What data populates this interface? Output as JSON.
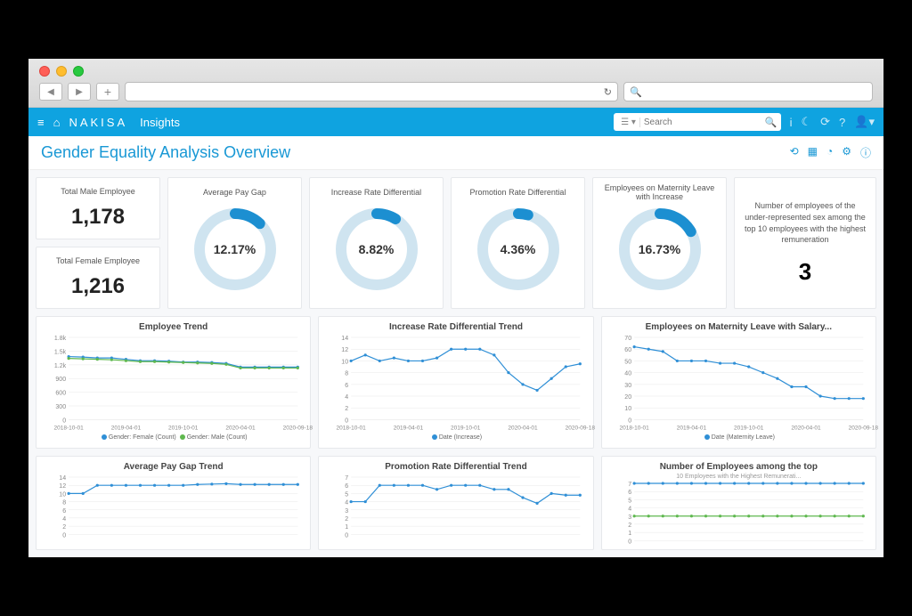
{
  "colors": {
    "header_bg": "#0fa3e0",
    "accent": "#1998d5",
    "series_blue": "#2f8fd6",
    "series_green": "#5fb84f",
    "donut_track": "#cfe4f0",
    "donut_fill": "#1c8fd1",
    "grid": "#e8e8e8",
    "axis_text": "#888888",
    "card_border": "#e6e8eb",
    "bg": "#f7f8fa"
  },
  "mac": {
    "search_icon": "🔍",
    "refresh_icon": "↻"
  },
  "header": {
    "brand": "NAKISA",
    "brand_sub": "Insights",
    "search_placeholder": "Search",
    "selector": "☰ ▾"
  },
  "page": {
    "title": "Gender Equality Analysis Overview"
  },
  "kpis": {
    "male": {
      "label": "Total Male Employee",
      "value": "1,178"
    },
    "female": {
      "label": "Total Female Employee",
      "value": "1,216"
    }
  },
  "donuts": [
    {
      "title": "Average Pay Gap",
      "value": "12.17%",
      "pct": 12.17
    },
    {
      "title": "Increase Rate Differential",
      "value": "8.82%",
      "pct": 8.82
    },
    {
      "title": "Promotion Rate Differential",
      "value": "4.36%",
      "pct": 4.36
    },
    {
      "title": "Employees on Maternity Leave with Increase",
      "value": "16.73%",
      "pct": 16.73
    }
  ],
  "text_card": {
    "desc": "Number of employees of the under-represented sex among the top 10 employees with the highest remuneration",
    "value": "3"
  },
  "x_axis": {
    "labels": [
      "2018-10-01",
      "2019-04-01",
      "2019-10-01",
      "2020-04-01",
      "2020-09-18"
    ],
    "positions": [
      0,
      0.25,
      0.5,
      0.75,
      1.0
    ]
  },
  "charts_row1": [
    {
      "title": "Employee Trend",
      "legend": [
        {
          "label": "Gender: Female (Count)",
          "color": "#2f8fd6"
        },
        {
          "label": "Gender: Male (Count)",
          "color": "#5fb84f"
        }
      ],
      "y": {
        "min": 0,
        "max": 1800,
        "ticks": [
          0,
          300,
          600,
          900,
          1200,
          1500,
          1800
        ],
        "tick_labels": [
          "0",
          "300",
          "600",
          "900",
          "1.2k",
          "1.5k",
          "1.8k"
        ]
      },
      "series": [
        {
          "color": "#2f8fd6",
          "points": [
            1380,
            1370,
            1350,
            1350,
            1320,
            1290,
            1290,
            1280,
            1260,
            1260,
            1250,
            1230,
            1150,
            1150,
            1150,
            1150,
            1150
          ]
        },
        {
          "color": "#5fb84f",
          "points": [
            1340,
            1330,
            1320,
            1310,
            1290,
            1270,
            1270,
            1260,
            1250,
            1240,
            1230,
            1210,
            1130,
            1130,
            1130,
            1130,
            1130
          ]
        }
      ]
    },
    {
      "title": "Increase Rate Differential Trend",
      "legend": [
        {
          "label": "Date (Increase)",
          "color": "#2f8fd6"
        }
      ],
      "y": {
        "min": 0,
        "max": 14,
        "ticks": [
          0,
          2,
          4,
          6,
          8,
          10,
          12,
          14
        ],
        "tick_labels": [
          "0",
          "2",
          "4",
          "6",
          "8",
          "10",
          "12",
          "14"
        ]
      },
      "series": [
        {
          "color": "#2f8fd6",
          "points": [
            10,
            11,
            10,
            10.5,
            10,
            10,
            10.5,
            12,
            12,
            12,
            11,
            8,
            6,
            5,
            7,
            9,
            9.5
          ]
        }
      ]
    },
    {
      "title": "Employees on Maternity Leave with Salary...",
      "legend": [
        {
          "label": "Date (Maternity Leave)",
          "color": "#2f8fd6"
        }
      ],
      "y": {
        "min": 0,
        "max": 70,
        "ticks": [
          0,
          10,
          20,
          30,
          40,
          50,
          60,
          70
        ],
        "tick_labels": [
          "0",
          "10",
          "20",
          "30",
          "40",
          "50",
          "60",
          "70"
        ]
      },
      "series": [
        {
          "color": "#2f8fd6",
          "points": [
            62,
            60,
            58,
            50,
            50,
            50,
            48,
            48,
            45,
            40,
            35,
            28,
            28,
            20,
            18,
            18,
            18
          ]
        }
      ]
    }
  ],
  "charts_row2": [
    {
      "title": "Average Pay Gap Trend",
      "y": {
        "min": 0,
        "max": 14,
        "ticks": [
          0,
          2,
          4,
          6,
          8,
          10,
          12,
          14
        ],
        "tick_labels": [
          "0",
          "2",
          "4",
          "6",
          "8",
          "10",
          "12",
          "14"
        ]
      },
      "series": [
        {
          "color": "#2f8fd6",
          "points": [
            10,
            10,
            12,
            12,
            12,
            12,
            12,
            12,
            12,
            12.2,
            12.3,
            12.4,
            12.2,
            12.2,
            12.2,
            12.2,
            12.2
          ]
        }
      ]
    },
    {
      "title": "Promotion Rate Differential Trend",
      "y": {
        "min": 0,
        "max": 7,
        "ticks": [
          0,
          1,
          2,
          3,
          4,
          5,
          6,
          7
        ],
        "tick_labels": [
          "0",
          "1",
          "2",
          "3",
          "4",
          "5",
          "6",
          "7"
        ]
      },
      "series": [
        {
          "color": "#2f8fd6",
          "points": [
            4,
            4,
            6,
            6,
            6,
            6,
            5.5,
            6,
            6,
            6,
            5.5,
            5.5,
            4.5,
            3.8,
            5,
            4.8,
            4.8
          ]
        }
      ]
    },
    {
      "title": "Number of Employees among the top",
      "subtitle": "10 Employees with the Highest Remunerati...",
      "y": {
        "min": 0,
        "max": 7,
        "ticks": [
          0,
          1,
          2,
          3,
          4,
          5,
          6,
          7
        ],
        "tick_labels": [
          "0",
          "1",
          "2",
          "3",
          "4",
          "5",
          "6",
          "7"
        ]
      },
      "series": [
        {
          "color": "#2f8fd6",
          "points": [
            7,
            7,
            7,
            7,
            7,
            7,
            7,
            7,
            7,
            7,
            7,
            7,
            7,
            7,
            7,
            7,
            7
          ]
        },
        {
          "color": "#5fb84f",
          "points": [
            3,
            3,
            3,
            3,
            3,
            3,
            3,
            3,
            3,
            3,
            3,
            3,
            3,
            3,
            3,
            3,
            3
          ]
        }
      ]
    }
  ]
}
